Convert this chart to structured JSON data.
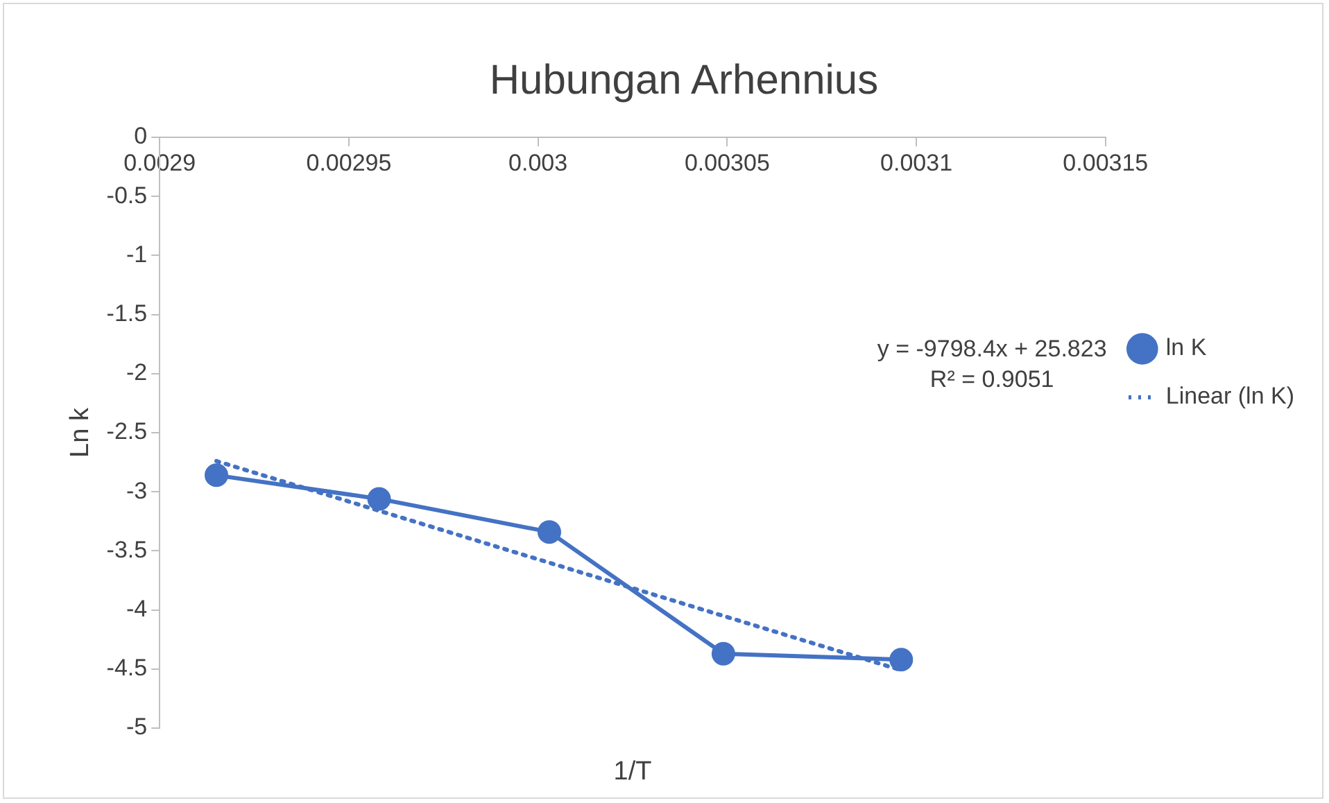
{
  "chart_data": {
    "type": "line",
    "title": "Hubungan Arhennius",
    "xlabel": "1/T",
    "ylabel": "Ln k",
    "x": [
      0.002915,
      0.002958,
      0.003003,
      0.003049,
      0.003096
    ],
    "series": [
      {
        "name": "ln K",
        "color": "#4472c4",
        "values": [
          -2.86,
          -3.06,
          -3.34,
          -4.37,
          -4.42
        ],
        "marker": "circle",
        "line_style": "solid"
      },
      {
        "name": "Linear (ln K)",
        "type": "line",
        "color": "#4472c4",
        "x": [
          0.002915,
          0.003096
        ],
        "values": [
          -2.74,
          -4.51
        ],
        "marker": "none",
        "line_style": "dotted"
      }
    ],
    "xlim": [
      0.0029,
      0.00315
    ],
    "xticks": [
      0.0029,
      0.00295,
      0.003,
      0.00305,
      0.0031,
      0.00315
    ],
    "ylim": [
      -5,
      0
    ],
    "yticks": [
      0,
      -0.5,
      -1,
      -1.5,
      -2,
      -2.5,
      -3,
      -3.5,
      -4,
      -4.5,
      -5
    ],
    "annotations": [
      "y = -9798.4x + 25.823",
      "R² = 0.9051"
    ],
    "grid": false,
    "legend": "right"
  }
}
